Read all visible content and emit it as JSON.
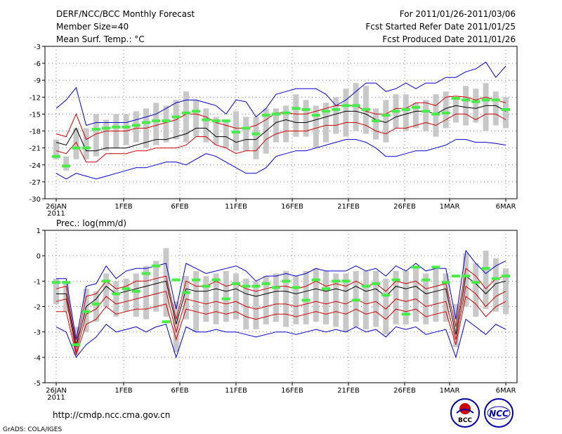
{
  "header": {
    "title": "DERF/NCC/BCC Monthly Forecast",
    "member_size": "Member Size=40",
    "variable": "Mean Surf. Temp.: °C",
    "period": "For 2011/01/26-2011/03/06",
    "started": "Fcst Started Refer Date 2011/01/25",
    "produced": "Fcst Produced Date 2011/01/26"
  },
  "footer": {
    "url": "http://cmdp.ncc.cma.gov.cn",
    "grads": "GrADS: COLA/IGES",
    "logo_bcc": "BCC",
    "logo_ncc": "NCC"
  },
  "colors": {
    "envelope": "#0000cc",
    "percentile": "#cc0000",
    "mean": "#000000",
    "bar": "#c8c8c8",
    "marker": "#44ee44",
    "grid": "#888888"
  },
  "chart_data": [
    {
      "type": "line",
      "title": "Mean Surf. Temp.: °C",
      "ylim": [
        -30,
        -3
      ],
      "yticks": [
        -3,
        -6,
        -9,
        -12,
        -15,
        -18,
        -21,
        -24,
        -27,
        -30
      ],
      "xlim": [
        0,
        40
      ],
      "xticks": [
        {
          "x": 0,
          "label": "26JAN",
          "sub": "2011"
        },
        {
          "x": 6,
          "label": "1FEB"
        },
        {
          "x": 11,
          "label": "6FEB"
        },
        {
          "x": 16,
          "label": "11FEB"
        },
        {
          "x": 21,
          "label": "16FEB"
        },
        {
          "x": 26,
          "label": "21FEB"
        },
        {
          "x": 31,
          "label": "26FEB"
        },
        {
          "x": 35,
          "label": "1MAR"
        },
        {
          "x": 40,
          "label": "6MAR"
        }
      ],
      "series": [
        {
          "name": "max",
          "color": "#0000cc",
          "values": [
            -14,
            -12.5,
            -10.3,
            -17,
            -16.5,
            -16.5,
            -16.5,
            -16.5,
            -16,
            -15.5,
            -15,
            -14,
            -13,
            -12.5,
            -12.5,
            -13,
            -13.5,
            -15,
            -12.5,
            -12.8,
            -15.5,
            -14,
            -11.5,
            -11,
            -10.5,
            -10.5,
            -10.5,
            -11.5,
            -13.5,
            -12.5,
            -11,
            -9.5,
            -9.5,
            -11,
            -10.5,
            -9.5,
            -10.5,
            -9.5,
            -9.5,
            -8.5,
            -8.5,
            -7.5,
            -7,
            -5.8,
            -8.5,
            -6.5
          ]
        },
        {
          "name": "p75",
          "color": "#cc0000",
          "values": [
            -18.5,
            -19,
            -15,
            -19.5,
            -18.5,
            -18,
            -18,
            -18,
            -17.5,
            -17.5,
            -17,
            -16.5,
            -16,
            -15,
            -15,
            -15.5,
            -16.5,
            -17,
            -17.5,
            -17.5,
            -17,
            -16,
            -14.8,
            -14.8,
            -15,
            -15,
            -14.5,
            -14,
            -13.5,
            -13.5,
            -13.5,
            -14.5,
            -15,
            -15,
            -14,
            -14,
            -13,
            -13,
            -13.5,
            -12,
            -11.8,
            -12,
            -12.5,
            -12,
            -12.5,
            -13
          ]
        },
        {
          "name": "mean",
          "color": "#000000",
          "values": [
            -20,
            -20.5,
            -17.5,
            -21.5,
            -21.5,
            -21,
            -21,
            -21,
            -20.5,
            -20,
            -19.5,
            -19.5,
            -19,
            -18.5,
            -17.5,
            -17.5,
            -19,
            -19,
            -20,
            -19.5,
            -19.5,
            -18,
            -16.5,
            -16,
            -16.5,
            -16.5,
            -16,
            -15.5,
            -15,
            -14.5,
            -14.5,
            -15,
            -16,
            -16.5,
            -15.5,
            -15,
            -14.5,
            -14.5,
            -15,
            -14,
            -13.5,
            -13.8,
            -14,
            -13.5,
            -13.5,
            -14.5
          ]
        },
        {
          "name": "p25",
          "color": "#cc0000",
          "values": [
            -21.5,
            -22,
            -20,
            -23.5,
            -23.5,
            -22,
            -22,
            -22,
            -21.5,
            -21.5,
            -21,
            -21,
            -21,
            -20.5,
            -19,
            -19,
            -20.5,
            -21,
            -22,
            -21.5,
            -21.5,
            -19.5,
            -18.5,
            -18,
            -18,
            -18,
            -17.5,
            -17,
            -17,
            -16.5,
            -16.5,
            -17,
            -18,
            -18.5,
            -17.5,
            -17.5,
            -17,
            -16.5,
            -17,
            -16,
            -15,
            -15,
            -16,
            -15,
            -15,
            -16
          ]
        },
        {
          "name": "min",
          "color": "#0000cc",
          "values": [
            -25.5,
            -26.5,
            -25.5,
            -26,
            -26.5,
            -26,
            -25.5,
            -25,
            -24.5,
            -24.5,
            -24,
            -23.5,
            -23.5,
            -24,
            -23,
            -22,
            -22.5,
            -23.5,
            -24.5,
            -25.5,
            -25.5,
            -24.5,
            -22.5,
            -22,
            -21.5,
            -21.5,
            -21,
            -20.5,
            -20,
            -19.5,
            -19.5,
            -20,
            -21,
            -22.5,
            -22.5,
            -22,
            -21.5,
            -21.5,
            -21,
            -20.5,
            -19.5,
            -19.5,
            -20,
            -20,
            -20.2,
            -20.5
          ]
        }
      ],
      "bars": [
        [
          -19.5,
          -23
        ],
        [
          -22.5,
          -25
        ],
        [
          -17.5,
          -23
        ],
        [
          -17.5,
          -23
        ],
        [
          -15,
          -22.5
        ],
        [
          -16,
          -21.5
        ],
        [
          -15,
          -21
        ],
        [
          -15,
          -20.5
        ],
        [
          -14.5,
          -20
        ],
        [
          -14,
          -21
        ],
        [
          -13,
          -20.5
        ],
        [
          -13.5,
          -20
        ],
        [
          -12.5,
          -19.5
        ],
        [
          -11,
          -20
        ],
        [
          -12.5,
          -19
        ],
        [
          -14,
          -20
        ],
        [
          -15.5,
          -20.5
        ],
        [
          -16,
          -21
        ],
        [
          -14.5,
          -21.5
        ],
        [
          -15.5,
          -21.5
        ],
        [
          -15.5,
          -23
        ],
        [
          -14,
          -22
        ],
        [
          -14,
          -20
        ],
        [
          -13.5,
          -20
        ],
        [
          -11.5,
          -19
        ],
        [
          -12.5,
          -19
        ],
        [
          -13.5,
          -21
        ],
        [
          -13,
          -20
        ],
        [
          -12,
          -18.5
        ],
        [
          -10.5,
          -19
        ],
        [
          -9.5,
          -18
        ],
        [
          -10,
          -18.5
        ],
        [
          -14,
          -19.5
        ],
        [
          -12.5,
          -20
        ],
        [
          -11.5,
          -17.5
        ],
        [
          -11.5,
          -18
        ],
        [
          -13,
          -17.5
        ],
        [
          -12.5,
          -18
        ],
        [
          -11.5,
          -19
        ],
        [
          -11,
          -17.5
        ],
        [
          -12,
          -16.5
        ],
        [
          -10,
          -17
        ],
        [
          -10.5,
          -16.5
        ],
        [
          -9.5,
          -18
        ],
        [
          -11,
          -17
        ],
        [
          -12,
          -17.5
        ]
      ],
      "markers": [
        -22.5,
        -24.2,
        -21,
        -21,
        -17.7,
        -17.5,
        -17.3,
        -17.3,
        -17,
        -16.5,
        -16.2,
        -16.2,
        -15.5,
        -14.8,
        -14.5,
        -16,
        -16.2,
        -16.2,
        -18.2,
        -17.5,
        -18.5,
        -15.2,
        -15,
        -14.8,
        -14,
        -14.2,
        -15.2,
        -14.5,
        -14.2,
        -13.5,
        -13.5,
        -14.2,
        -16.2,
        -15.2,
        -14.5,
        -14.2,
        -13.8,
        -14.5,
        -15,
        -14.8,
        -12.2,
        -12.5,
        -12.8,
        -12.5,
        -12.5,
        -14.2
      ]
    },
    {
      "type": "line",
      "title": "Prec.: log(mm/d)",
      "ylim": [
        -5,
        1
      ],
      "yticks": [
        1,
        0,
        -1,
        -2,
        -3,
        -4,
        -5
      ],
      "xlim": [
        0,
        40
      ],
      "xticks": [
        {
          "x": 0,
          "label": "26JAN",
          "sub": "2011"
        },
        {
          "x": 6,
          "label": "1FEB"
        },
        {
          "x": 11,
          "label": "6FEB"
        },
        {
          "x": 16,
          "label": "11FEB"
        },
        {
          "x": 21,
          "label": "16FEB"
        },
        {
          "x": 26,
          "label": "21FEB"
        },
        {
          "x": 31,
          "label": "26FEB"
        },
        {
          "x": 35,
          "label": "1MAR"
        },
        {
          "x": 40,
          "label": "6MAR"
        }
      ],
      "series": [
        {
          "name": "max",
          "color": "#0000cc",
          "values": [
            -0.9,
            -0.9,
            -3.3,
            -1.2,
            -1.1,
            -0.4,
            -0.9,
            -0.6,
            -0.5,
            -0.5,
            -0.4,
            -0.3,
            -2.1,
            -0.3,
            -0.5,
            -0.7,
            -0.6,
            -0.5,
            -0.4,
            -0.6,
            -1.0,
            -0.8,
            -0.8,
            -0.7,
            -0.8,
            -0.7,
            -0.5,
            -0.6,
            -0.6,
            -0.6,
            -0.4,
            -0.6,
            -0.5,
            -0.8,
            -0.4,
            -0.6,
            -0.3,
            -0.6,
            -0.5,
            -0.5,
            -2.5,
            0.2,
            -0.3,
            -0.7,
            -0.4,
            -0.2
          ]
        },
        {
          "name": "p75",
          "color": "#cc0000",
          "values": [
            -1.3,
            -1.2,
            -3.5,
            -1.6,
            -1.5,
            -1.0,
            -1.3,
            -1.2,
            -1.0,
            -1.0,
            -0.9,
            -0.8,
            -2.5,
            -1.0,
            -1.2,
            -1.2,
            -1.0,
            -1.2,
            -1.1,
            -1.3,
            -1.4,
            -1.3,
            -1.2,
            -1.2,
            -1.3,
            -1.2,
            -1.0,
            -1.2,
            -1.1,
            -1.2,
            -1.0,
            -1.2,
            -1.1,
            -1.4,
            -1.0,
            -1.1,
            -1.0,
            -1.3,
            -1.2,
            -1.1,
            -2.8,
            -0.5,
            -0.8,
            -1.3,
            -0.9,
            -0.8
          ]
        },
        {
          "name": "mean",
          "color": "#000000",
          "values": [
            -1.5,
            -1.5,
            -3.6,
            -2.0,
            -1.7,
            -1.2,
            -1.5,
            -1.4,
            -1.3,
            -1.2,
            -1.1,
            -1.0,
            -2.7,
            -1.3,
            -1.4,
            -1.4,
            -1.3,
            -1.4,
            -1.3,
            -1.5,
            -1.6,
            -1.5,
            -1.4,
            -1.4,
            -1.5,
            -1.4,
            -1.3,
            -1.4,
            -1.3,
            -1.4,
            -1.2,
            -1.4,
            -1.3,
            -1.6,
            -1.2,
            -1.3,
            -1.2,
            -1.5,
            -1.4,
            -1.3,
            -3.1,
            -0.8,
            -1.1,
            -1.5,
            -1.1,
            -1.0
          ]
        },
        {
          "name": "p25",
          "color": "#cc0000",
          "values": [
            -1.8,
            -1.7,
            -3.8,
            -2.3,
            -2.1,
            -1.6,
            -1.9,
            -1.8,
            -1.7,
            -1.6,
            -1.5,
            -1.4,
            -3.0,
            -1.7,
            -1.8,
            -1.9,
            -1.8,
            -1.9,
            -1.8,
            -2.0,
            -2.1,
            -2.0,
            -1.9,
            -1.9,
            -2.0,
            -1.9,
            -1.8,
            -1.9,
            -1.8,
            -1.9,
            -1.7,
            -1.9,
            -1.8,
            -2.1,
            -1.7,
            -1.8,
            -1.7,
            -2.0,
            -1.9,
            -1.8,
            -3.3,
            -1.2,
            -1.5,
            -2.0,
            -1.6,
            -1.4
          ]
        },
        {
          "name": "min",
          "color": "#0000cc",
          "values": [
            -2.8,
            -3.0,
            -4.0,
            -3.5,
            -3.2,
            -2.7,
            -3.0,
            -2.9,
            -2.8,
            -3.0,
            -2.8,
            -2.7,
            -4.0,
            -2.8,
            -3.0,
            -3.0,
            -2.9,
            -3.0,
            -3.0,
            -3.1,
            -3.2,
            -3.1,
            -3.0,
            -3.0,
            -3.1,
            -3.0,
            -2.9,
            -3.0,
            -2.9,
            -3.0,
            -2.8,
            -3.0,
            -2.9,
            -3.2,
            -2.8,
            -2.9,
            -2.8,
            -3.1,
            -3.0,
            -2.9,
            -4.0,
            -2.5,
            -2.8,
            -3.1,
            -2.7,
            -2.9
          ]
        },
        {
          "name": "p10_b",
          "color": "#cc0000",
          "values": [
            -2.2,
            -2.2,
            -3.9,
            -2.7,
            -2.5,
            -2.0,
            -2.3,
            -2.2,
            -2.1,
            -2.1,
            -2.0,
            -1.9,
            -3.3,
            -2.1,
            -2.2,
            -2.3,
            -2.2,
            -2.3,
            -2.2,
            -2.4,
            -2.5,
            -2.4,
            -2.3,
            -2.3,
            -2.4,
            -2.3,
            -2.2,
            -2.3,
            -2.2,
            -2.3,
            -2.1,
            -2.3,
            -2.2,
            -2.5,
            -2.1,
            -2.2,
            -2.1,
            -2.4,
            -2.3,
            -2.2,
            -3.5,
            -1.6,
            -1.9,
            -2.4,
            -2.0,
            -1.8
          ]
        }
      ],
      "bars": [
        [
          -0.9,
          -1.9
        ],
        [
          -1.0,
          -2.2
        ],
        [
          -2.8,
          -3.9
        ],
        [
          -1.3,
          -3.0
        ],
        [
          -1.4,
          -2.6
        ],
        [
          -0.7,
          -2.0
        ],
        [
          -1.0,
          -2.4
        ],
        [
          -0.9,
          -2.2
        ],
        [
          -0.7,
          -2.4
        ],
        [
          -0.4,
          -2.5
        ],
        [
          -0.2,
          -2.2
        ],
        [
          0.3,
          -2.4
        ],
        [
          -1.8,
          -3.8
        ],
        [
          -0.8,
          -2.5
        ],
        [
          -0.6,
          -3.0
        ],
        [
          -0.8,
          -2.6
        ],
        [
          -0.7,
          -2.7
        ],
        [
          -0.6,
          -2.6
        ],
        [
          -0.7,
          -2.5
        ],
        [
          -0.9,
          -2.9
        ],
        [
          -1.0,
          -2.9
        ],
        [
          -0.8,
          -2.7
        ],
        [
          -0.7,
          -2.6
        ],
        [
          -0.6,
          -2.8
        ],
        [
          -0.8,
          -2.7
        ],
        [
          -0.6,
          -2.7
        ],
        [
          -0.5,
          -2.6
        ],
        [
          -0.6,
          -2.7
        ],
        [
          -0.7,
          -2.8
        ],
        [
          -0.7,
          -3.0
        ],
        [
          -0.6,
          -2.8
        ],
        [
          -0.6,
          -2.9
        ],
        [
          -0.6,
          -2.8
        ],
        [
          -0.9,
          -3.1
        ],
        [
          -0.6,
          -2.7
        ],
        [
          -0.6,
          -2.7
        ],
        [
          -0.5,
          -2.6
        ],
        [
          -0.7,
          -2.7
        ],
        [
          -0.5,
          -2.6
        ],
        [
          -0.7,
          -2.6
        ],
        [
          -1.9,
          -3.6
        ],
        [
          0.1,
          -2.0
        ],
        [
          -0.3,
          -2.4
        ],
        [
          0.2,
          -2.1
        ],
        [
          -0.1,
          -2.2
        ],
        [
          -0.5,
          -2.3
        ]
      ],
      "markers": [
        -1.05,
        -1.05,
        -3.5,
        -2.2,
        -1.9,
        -1.0,
        -1.5,
        -1.3,
        -1.4,
        -0.7,
        -0.4,
        -2.6,
        -0.95,
        -1.45,
        -0.95,
        -1.2,
        -0.95,
        -1.7,
        -1.1,
        -1.2,
        -1.2,
        -1.1,
        -1.25,
        -1.0,
        -1.25,
        -1.75,
        -0.95,
        -1.3,
        -1.0,
        -1.0,
        -1.75,
        -1.2,
        -1.1,
        -1.55,
        -0.95,
        -2.3,
        -0.45,
        -0.95,
        -0.45,
        -1.05,
        -0.8,
        -0.8,
        -1.05,
        -0.5,
        -0.9,
        -0.8
      ]
    }
  ]
}
